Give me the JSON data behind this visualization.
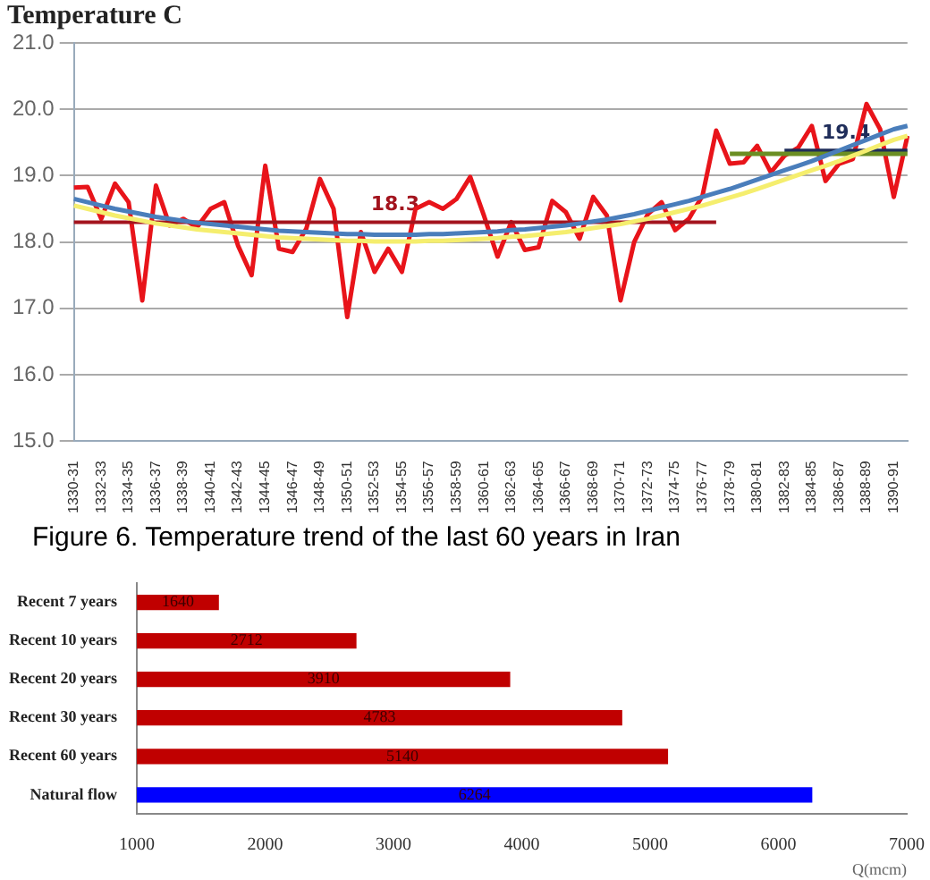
{
  "chart_data": [
    {
      "type": "line",
      "title": "Temperature C",
      "categories": [
        "1330-31",
        null,
        "1332-33",
        null,
        "1334-35",
        null,
        "1336-37",
        null,
        "1338-39",
        null,
        "1340-41",
        null,
        "1342-43",
        null,
        "1344-45",
        null,
        "1346-47",
        null,
        "1348-49",
        null,
        "1350-51",
        null,
        "1352-53",
        null,
        "1354-55",
        null,
        "1356-57",
        null,
        "1358-59",
        null,
        "1360-61",
        null,
        "1362-63",
        null,
        "1364-65",
        null,
        "1366-67",
        null,
        "1368-69",
        null,
        "1370-71",
        null,
        "1372-73",
        null,
        "1374-75",
        null,
        "1376-77",
        null,
        "1378-79",
        null,
        "1380-81",
        null,
        "1382-83",
        null,
        "1384-85",
        null,
        "1386-87",
        null,
        "1388-89",
        null,
        "1390-91",
        null
      ],
      "series": [
        {
          "color": "#f5ee6e",
          "values": [
            18.55,
            18.5,
            18.45,
            18.4,
            18.36,
            18.32,
            18.28,
            18.25,
            18.22,
            18.19,
            18.17,
            18.15,
            18.13,
            18.11,
            18.09,
            18.07,
            18.06,
            18.05,
            18.04,
            18.03,
            18.02,
            18.02,
            18.01,
            18.01,
            18.01,
            18.01,
            18.02,
            18.02,
            18.03,
            18.04,
            18.05,
            18.06,
            18.08,
            18.09,
            18.11,
            18.13,
            18.15,
            18.18,
            18.21,
            18.24,
            18.27,
            18.31,
            18.35,
            18.4,
            18.45,
            18.5,
            18.55,
            18.61,
            18.67,
            18.73,
            18.8,
            18.87,
            18.94,
            19.01,
            19.08,
            19.15,
            19.22,
            19.3,
            19.38,
            19.46,
            19.54,
            19.6
          ]
        },
        {
          "color": "#4a7ebb",
          "values": [
            18.65,
            18.6,
            18.55,
            18.5,
            18.46,
            18.42,
            18.38,
            18.35,
            18.32,
            18.29,
            18.27,
            18.25,
            18.23,
            18.21,
            18.19,
            18.17,
            18.16,
            18.15,
            18.14,
            18.13,
            18.12,
            18.12,
            18.11,
            18.11,
            18.11,
            18.11,
            18.12,
            18.12,
            18.13,
            18.14,
            18.15,
            18.16,
            18.18,
            18.19,
            18.21,
            18.23,
            18.25,
            18.28,
            18.31,
            18.34,
            18.38,
            18.42,
            18.47,
            18.52,
            18.57,
            18.62,
            18.68,
            18.74,
            18.8,
            18.87,
            18.94,
            19.01,
            19.08,
            19.15,
            19.22,
            19.3,
            19.38,
            19.46,
            19.54,
            19.62,
            19.7,
            19.75
          ]
        },
        {
          "name": "18.3",
          "color": "#a3141e",
          "values": [
            18.3,
            18.3,
            18.3,
            18.3,
            18.3,
            18.3,
            18.3,
            18.3,
            18.3,
            18.3,
            18.3,
            18.3,
            18.3,
            18.3,
            18.3,
            18.3,
            18.3,
            18.3,
            18.3,
            18.3,
            18.3,
            18.3,
            18.3,
            18.3,
            18.3,
            18.3,
            18.3,
            18.3,
            18.3,
            18.3,
            18.3,
            18.3,
            18.3,
            18.3,
            18.3,
            18.3,
            18.3,
            18.3,
            18.3,
            18.3,
            18.3,
            18.3,
            18.3,
            18.3,
            18.3,
            18.3,
            18.3,
            18.3,
            null,
            null,
            null,
            null,
            null,
            null,
            null,
            null,
            null,
            null,
            null,
            null,
            null,
            null
          ]
        },
        {
          "color": "#6b8e23",
          "values": [
            null,
            null,
            null,
            null,
            null,
            null,
            null,
            null,
            null,
            null,
            null,
            null,
            null,
            null,
            null,
            null,
            null,
            null,
            null,
            null,
            null,
            null,
            null,
            null,
            null,
            null,
            null,
            null,
            null,
            null,
            null,
            null,
            null,
            null,
            null,
            null,
            null,
            null,
            null,
            null,
            null,
            null,
            null,
            null,
            null,
            null,
            null,
            null,
            19.33,
            19.33,
            19.33,
            19.33,
            19.33,
            19.33,
            19.33,
            19.33,
            19.33,
            19.33,
            19.33,
            19.33,
            19.33,
            19.33
          ]
        },
        {
          "name": "19.4",
          "color": "#1f2d5a",
          "values": [
            null,
            null,
            null,
            null,
            null,
            null,
            null,
            null,
            null,
            null,
            null,
            null,
            null,
            null,
            null,
            null,
            null,
            null,
            null,
            null,
            null,
            null,
            null,
            null,
            null,
            null,
            null,
            null,
            null,
            null,
            null,
            null,
            null,
            null,
            null,
            null,
            null,
            null,
            null,
            null,
            null,
            null,
            null,
            null,
            null,
            null,
            null,
            null,
            null,
            null,
            null,
            null,
            19.38,
            19.38,
            19.38,
            19.38,
            19.38,
            19.38,
            19.38,
            19.38,
            19.38,
            19.38
          ]
        },
        {
          "color": "#e8141a",
          "values": [
            18.82,
            18.83,
            18.35,
            18.88,
            18.6,
            17.12,
            18.85,
            18.25,
            18.35,
            18.22,
            18.5,
            18.6,
            17.95,
            17.5,
            19.15,
            17.9,
            17.85,
            18.2,
            18.95,
            18.5,
            16.87,
            18.15,
            17.55,
            17.9,
            17.55,
            18.5,
            18.6,
            18.5,
            18.65,
            18.98,
            18.4,
            17.78,
            18.3,
            17.88,
            17.92,
            18.62,
            18.45,
            18.05,
            18.68,
            18.4,
            17.12,
            18.0,
            18.42,
            18.6,
            18.18,
            18.35,
            18.7,
            19.68,
            19.18,
            19.2,
            19.45,
            19.05,
            19.3,
            19.42,
            19.75,
            18.92,
            19.18,
            19.25,
            20.08,
            19.7,
            18.68,
            19.6
          ]
        }
      ],
      "ylim": [
        15,
        21
      ],
      "yticks": [
        {
          "value": 15,
          "label": "15.0"
        },
        {
          "value": 16,
          "label": "16.0"
        },
        {
          "value": 17,
          "label": "17.0"
        },
        {
          "value": 18,
          "label": "18.0"
        },
        {
          "value": 19,
          "label": "19.0"
        },
        {
          "value": 20,
          "label": "20.0"
        },
        {
          "value": 21,
          "label": "21.0"
        }
      ],
      "grid": "y",
      "legend": false,
      "marker": "none",
      "line_style": "solid",
      "annotations": [
        "Figure 6. Temperature trend of the last 60 years in Iran"
      ]
    },
    {
      "type": "bar",
      "orientation": "horizontal",
      "xlabel": "Q(mcm)",
      "categories": [
        "Recent 7 years",
        "Recent 10 years",
        "Recent 20 years",
        "Recent 30 years",
        "Recent 60 years",
        "Natural flow"
      ],
      "values": [
        1640,
        2712,
        3910,
        4783,
        5140,
        6264
      ],
      "colors": [
        "#c00000",
        "#c00000",
        "#c00000",
        "#c00000",
        "#c00000",
        "#0000ff"
      ],
      "xlim": [
        1000,
        7000
      ],
      "xticks": [
        1000,
        2000,
        3000,
        4000,
        5000,
        6000,
        7000
      ],
      "grid": false,
      "legend": false,
      "data_labels": true
    }
  ]
}
